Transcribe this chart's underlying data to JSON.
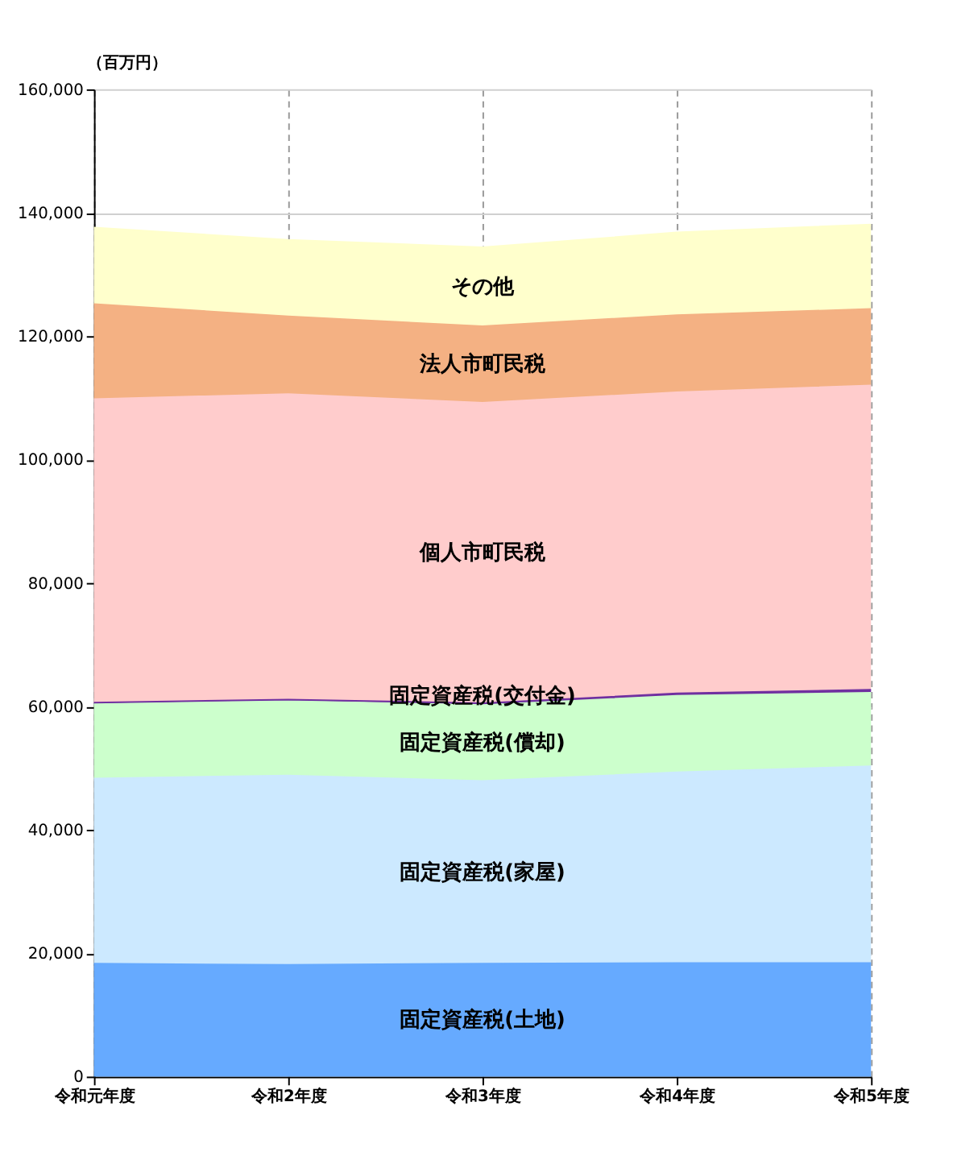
{
  "chart_data": {
    "type": "area",
    "stacked": true,
    "ylabel": "（百万円）",
    "categories": [
      "令和元年度",
      "令和2年度",
      "令和3年度",
      "令和4年度",
      "令和5年度"
    ],
    "series": [
      {
        "name": "固定資産税(土地)",
        "color": "#66aaff",
        "values": [
          18300,
          18100,
          18300,
          18400,
          18400
        ]
      },
      {
        "name": "固定資産税(家屋)",
        "color": "#cce9ff",
        "values": [
          30000,
          30700,
          29600,
          30900,
          31900
        ]
      },
      {
        "name": "固定資産税(償却)",
        "color": "#ccffcc",
        "values": [
          12100,
          12100,
          12300,
          12400,
          11900
        ]
      },
      {
        "name": "固定資産税(交付金)",
        "color": "#7030a0",
        "values": [
          200,
          200,
          300,
          400,
          500
        ]
      },
      {
        "name": "個人市町民税",
        "color": "#ffcccc",
        "values": [
          49200,
          49500,
          48700,
          48800,
          49300
        ]
      },
      {
        "name": "法人市町民税",
        "color": "#f4b183",
        "values": [
          15400,
          12600,
          12400,
          12500,
          12400
        ]
      },
      {
        "name": "その他",
        "color": "#ffffcc",
        "values": [
          12400,
          12400,
          12800,
          13400,
          13700
        ]
      }
    ],
    "ylim": [
      0,
      160000
    ],
    "yticks": [
      0,
      {
        "value": 20000,
        "label": "20,000"
      },
      {
        "value": 40000,
        "label": "40,000"
      },
      {
        "value": 60000,
        "label": "60,000"
      },
      {
        "value": 80000,
        "label": "80,000"
      },
      {
        "value": 100000,
        "label": "100,000"
      },
      {
        "value": 120000,
        "label": "120,000"
      },
      {
        "value": 140000,
        "label": "140,000"
      },
      {
        "value": 160000,
        "label": "160,000"
      }
    ],
    "grid": true,
    "legend": false
  }
}
